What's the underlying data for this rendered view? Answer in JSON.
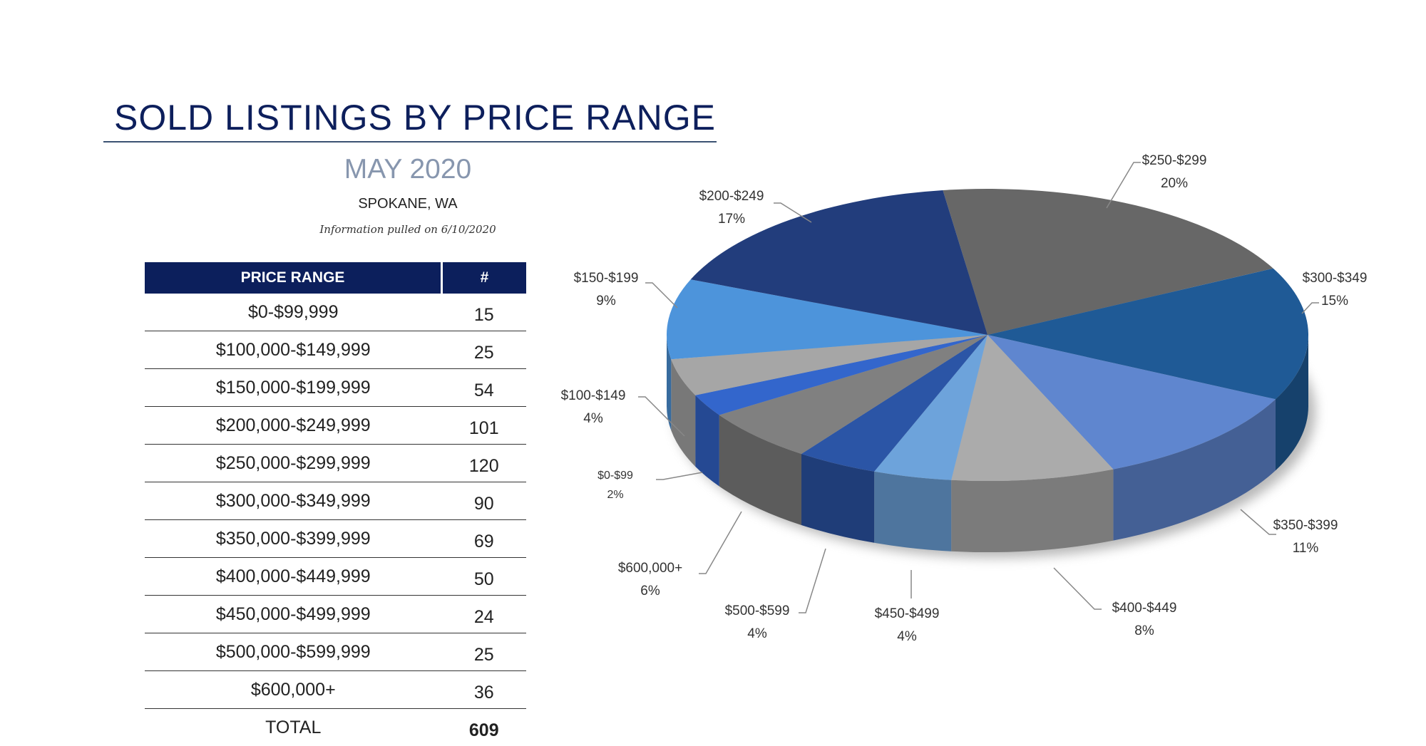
{
  "header": {
    "title": "SOLD LISTINGS BY PRICE RANGE",
    "month": "MAY 2020",
    "location": "SPOKANE, WA",
    "info": "Information pulled on 6/10/2020"
  },
  "table": {
    "headers": [
      "PRICE RANGE",
      "#"
    ],
    "rows": [
      {
        "range": "$0-$99,999",
        "count": "15"
      },
      {
        "range": "$100,000-$149,999",
        "count": "25"
      },
      {
        "range": "$150,000-$199,999",
        "count": "54"
      },
      {
        "range": "$200,000-$249,999",
        "count": "101"
      },
      {
        "range": "$250,000-$299,999",
        "count": "120"
      },
      {
        "range": "$300,000-$349,999",
        "count": "90"
      },
      {
        "range": "$350,000-$399,999",
        "count": "69"
      },
      {
        "range": "$400,000-$449,999",
        "count": "50"
      },
      {
        "range": "$450,000-$499,999",
        "count": "24"
      },
      {
        "range": "$500,000-$599,999",
        "count": "25"
      },
      {
        "range": "$600,000+",
        "count": "36"
      }
    ],
    "total_label": "TOTAL",
    "total": "609"
  },
  "chart_data": {
    "type": "pie",
    "style": "3d",
    "slices": [
      {
        "label": "$250-$299",
        "value": 120,
        "pct": "20%",
        "color": "#676767"
      },
      {
        "label": "$300-$349",
        "value": 90,
        "pct": "15%",
        "color": "#1f5a96"
      },
      {
        "label": "$350-$399",
        "value": 69,
        "pct": "11%",
        "color": "#5f86cf"
      },
      {
        "label": "$400-$449",
        "value": 50,
        "pct": "8%",
        "color": "#ababab"
      },
      {
        "label": "$450-$499",
        "value": 24,
        "pct": "4%",
        "color": "#6da3db"
      },
      {
        "label": "$500-$599",
        "value": 25,
        "pct": "4%",
        "color": "#2b55a6"
      },
      {
        "label": "$600,000+",
        "value": 36,
        "pct": "6%",
        "color": "#808080"
      },
      {
        "label": "$0-$99",
        "value": 15,
        "pct": "2%",
        "color": "#3366cc"
      },
      {
        "label": "$100-$149",
        "value": 25,
        "pct": "4%",
        "color": "#a6a6a6"
      },
      {
        "label": "$150-$199",
        "value": 54,
        "pct": "9%",
        "color": "#4d94db"
      },
      {
        "label": "$200-$249",
        "value": 101,
        "pct": "17%",
        "color": "#223d7c"
      }
    ]
  }
}
